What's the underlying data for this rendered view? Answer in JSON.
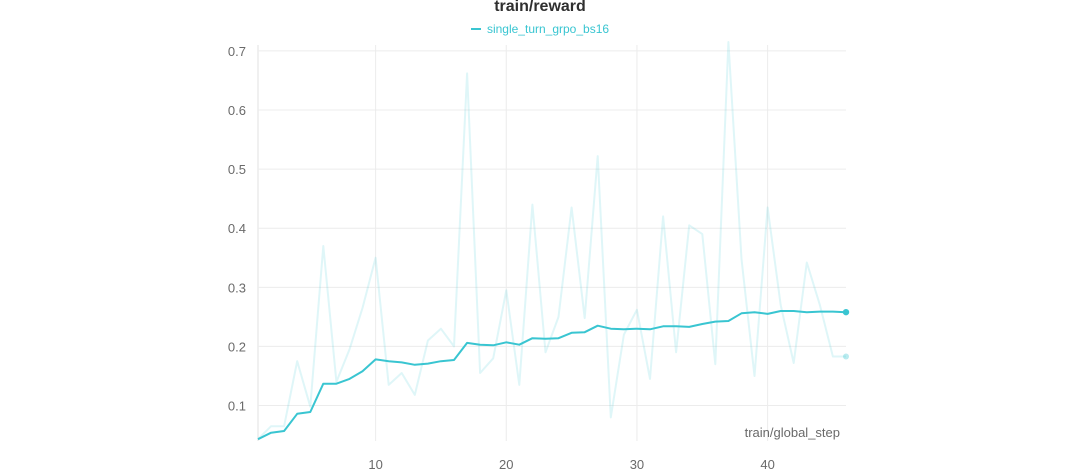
{
  "chart_data": {
    "type": "line",
    "title": "train/reward",
    "xlabel": "train/global_step",
    "ylabel": "",
    "xlim": [
      1,
      46
    ],
    "ylim": [
      0.04,
      0.71
    ],
    "xticks": [
      10,
      20,
      30,
      40
    ],
    "yticks": [
      0.1,
      0.2,
      0.3,
      0.4,
      0.5,
      0.6,
      0.7
    ],
    "grid": true,
    "legend_position": "top-center",
    "series": [
      {
        "name": "single_turn_grpo_bs16",
        "color": "#39c5d1",
        "role": "smoothed",
        "x": [
          1,
          2,
          3,
          4,
          5,
          6,
          7,
          8,
          9,
          10,
          11,
          12,
          13,
          14,
          15,
          16,
          17,
          18,
          19,
          20,
          21,
          22,
          23,
          24,
          25,
          26,
          27,
          28,
          29,
          30,
          31,
          32,
          33,
          34,
          35,
          36,
          37,
          38,
          39,
          40,
          41,
          42,
          43,
          44,
          45,
          46
        ],
        "y": [
          0.043,
          0.054,
          0.057,
          0.086,
          0.089,
          0.137,
          0.137,
          0.145,
          0.158,
          0.178,
          0.175,
          0.173,
          0.169,
          0.171,
          0.175,
          0.177,
          0.206,
          0.203,
          0.202,
          0.207,
          0.203,
          0.214,
          0.213,
          0.214,
          0.223,
          0.224,
          0.235,
          0.23,
          0.229,
          0.23,
          0.229,
          0.234,
          0.234,
          0.233,
          0.238,
          0.242,
          0.243,
          0.256,
          0.258,
          0.255,
          0.26,
          0.26,
          0.258,
          0.259,
          0.259,
          0.258
        ]
      },
      {
        "name": "",
        "color": "#39c5d1",
        "role": "raw",
        "x": [
          1,
          2,
          3,
          4,
          5,
          6,
          7,
          8,
          9,
          10,
          11,
          12,
          13,
          14,
          15,
          16,
          17,
          18,
          19,
          20,
          21,
          22,
          23,
          24,
          25,
          26,
          27,
          28,
          29,
          30,
          31,
          32,
          33,
          34,
          35,
          36,
          37,
          38,
          39,
          40,
          41,
          42,
          43,
          44,
          45,
          46
        ],
        "y": [
          0.043,
          0.065,
          0.065,
          0.175,
          0.098,
          0.37,
          0.14,
          0.195,
          0.265,
          0.35,
          0.135,
          0.155,
          0.118,
          0.21,
          0.23,
          0.2,
          0.662,
          0.155,
          0.18,
          0.295,
          0.135,
          0.44,
          0.19,
          0.25,
          0.435,
          0.248,
          0.522,
          0.08,
          0.22,
          0.262,
          0.145,
          0.42,
          0.19,
          0.405,
          0.39,
          0.17,
          0.715,
          0.348,
          0.15,
          0.435,
          0.27,
          0.172,
          0.342,
          0.27,
          0.183,
          0.183
        ]
      }
    ]
  }
}
